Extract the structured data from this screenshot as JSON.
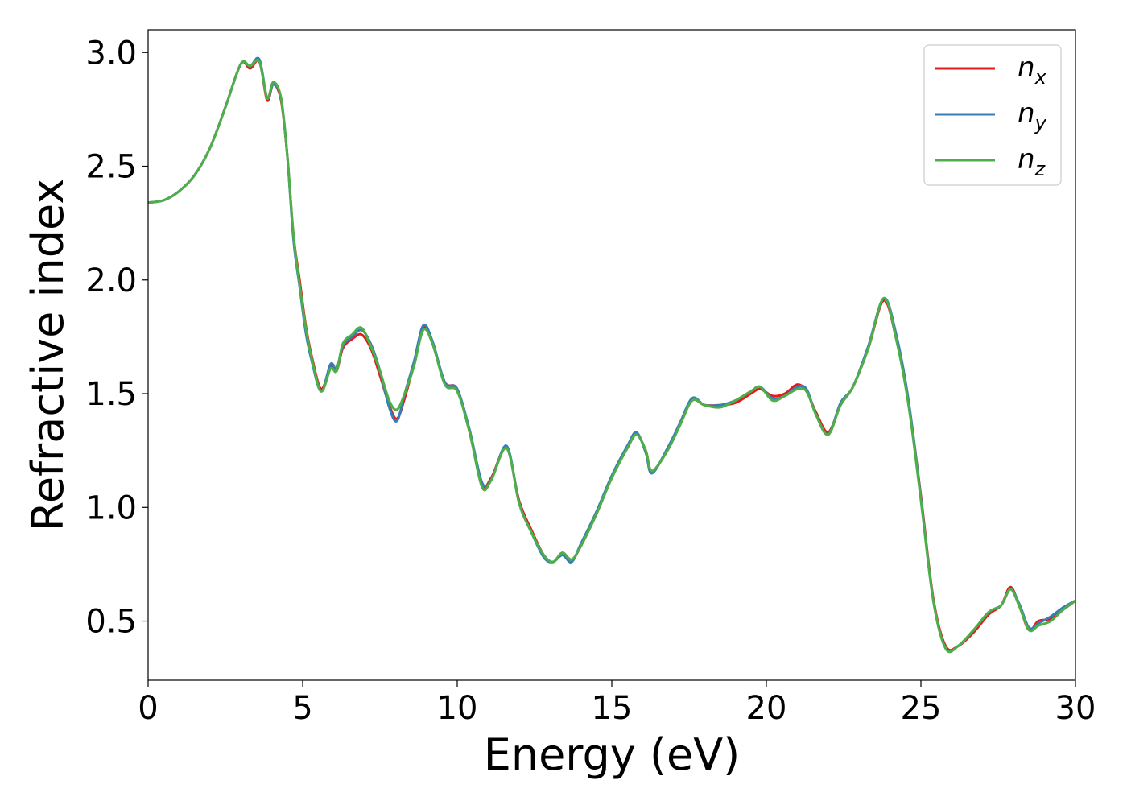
{
  "chart_data": {
    "type": "line",
    "title": "",
    "xlabel": "Energy (eV)",
    "ylabel": "Refractive index",
    "xlim": [
      0,
      30
    ],
    "ylim": [
      0.24,
      3.1
    ],
    "xticks": [
      0,
      5,
      10,
      15,
      20,
      25,
      30
    ],
    "yticks": [
      0.5,
      1.0,
      1.5,
      2.0,
      2.5,
      3.0
    ],
    "xtick_labels": [
      "0",
      "5",
      "10",
      "15",
      "20",
      "25",
      "30"
    ],
    "ytick_labels": [
      "0.5",
      "1.0",
      "1.5",
      "2.0",
      "2.5",
      "3.0"
    ],
    "grid": false,
    "legend_position": "top-right",
    "series": [
      {
        "name": "n_x",
        "label_base": "n",
        "label_sub": "x",
        "color": "#e41a1c",
        "points": [
          [
            0,
            2.34
          ],
          [
            0.5,
            2.35
          ],
          [
            1,
            2.39
          ],
          [
            1.5,
            2.46
          ],
          [
            2,
            2.58
          ],
          [
            2.5,
            2.76
          ],
          [
            3,
            2.95
          ],
          [
            3.3,
            2.93
          ],
          [
            3.6,
            2.96
          ],
          [
            3.85,
            2.79
          ],
          [
            4.05,
            2.86
          ],
          [
            4.3,
            2.79
          ],
          [
            4.5,
            2.55
          ],
          [
            4.7,
            2.2
          ],
          [
            4.9,
            2.0
          ],
          [
            5.1,
            1.8
          ],
          [
            5.3,
            1.66
          ],
          [
            5.6,
            1.52
          ],
          [
            5.9,
            1.62
          ],
          [
            6.1,
            1.6
          ],
          [
            6.3,
            1.7
          ],
          [
            6.6,
            1.74
          ],
          [
            6.9,
            1.76
          ],
          [
            7.2,
            1.7
          ],
          [
            7.5,
            1.58
          ],
          [
            7.8,
            1.45
          ],
          [
            8.05,
            1.39
          ],
          [
            8.3,
            1.48
          ],
          [
            8.6,
            1.63
          ],
          [
            8.9,
            1.79
          ],
          [
            9.2,
            1.72
          ],
          [
            9.6,
            1.55
          ],
          [
            10.0,
            1.52
          ],
          [
            10.4,
            1.33
          ],
          [
            10.8,
            1.1
          ],
          [
            11.1,
            1.13
          ],
          [
            11.6,
            1.26
          ],
          [
            12.0,
            1.03
          ],
          [
            12.4,
            0.9
          ],
          [
            12.8,
            0.79
          ],
          [
            13.1,
            0.76
          ],
          [
            13.4,
            0.8
          ],
          [
            13.7,
            0.77
          ],
          [
            14.0,
            0.83
          ],
          [
            14.5,
            0.97
          ],
          [
            15.0,
            1.13
          ],
          [
            15.5,
            1.26
          ],
          [
            15.8,
            1.32
          ],
          [
            16.1,
            1.25
          ],
          [
            16.3,
            1.16
          ],
          [
            16.8,
            1.25
          ],
          [
            17.2,
            1.36
          ],
          [
            17.6,
            1.47
          ],
          [
            18.0,
            1.45
          ],
          [
            18.5,
            1.45
          ],
          [
            19.0,
            1.46
          ],
          [
            19.5,
            1.5
          ],
          [
            19.8,
            1.52
          ],
          [
            20.2,
            1.49
          ],
          [
            20.6,
            1.5
          ],
          [
            21.0,
            1.54
          ],
          [
            21.3,
            1.51
          ],
          [
            21.6,
            1.42
          ],
          [
            22.0,
            1.33
          ],
          [
            22.4,
            1.45
          ],
          [
            22.8,
            1.53
          ],
          [
            23.3,
            1.7
          ],
          [
            23.8,
            1.91
          ],
          [
            24.2,
            1.74
          ],
          [
            24.6,
            1.46
          ],
          [
            25.0,
            1.05
          ],
          [
            25.4,
            0.6
          ],
          [
            25.8,
            0.39
          ],
          [
            26.2,
            0.39
          ],
          [
            26.7,
            0.45
          ],
          [
            27.2,
            0.53
          ],
          [
            27.6,
            0.57
          ],
          [
            27.9,
            0.65
          ],
          [
            28.2,
            0.56
          ],
          [
            28.5,
            0.46
          ],
          [
            28.8,
            0.5
          ],
          [
            29.2,
            0.51
          ],
          [
            29.6,
            0.55
          ],
          [
            30,
            0.59
          ]
        ]
      },
      {
        "name": "n_y",
        "label_base": "n",
        "label_sub": "y",
        "color": "#377eb8",
        "points": [
          [
            0,
            2.34
          ],
          [
            0.5,
            2.35
          ],
          [
            1,
            2.39
          ],
          [
            1.5,
            2.46
          ],
          [
            2,
            2.58
          ],
          [
            2.5,
            2.76
          ],
          [
            3,
            2.95
          ],
          [
            3.3,
            2.94
          ],
          [
            3.6,
            2.97
          ],
          [
            3.85,
            2.8
          ],
          [
            4.05,
            2.86
          ],
          [
            4.3,
            2.8
          ],
          [
            4.5,
            2.55
          ],
          [
            4.7,
            2.18
          ],
          [
            4.9,
            1.97
          ],
          [
            5.1,
            1.77
          ],
          [
            5.3,
            1.64
          ],
          [
            5.6,
            1.51
          ],
          [
            5.9,
            1.63
          ],
          [
            6.1,
            1.61
          ],
          [
            6.3,
            1.71
          ],
          [
            6.6,
            1.75
          ],
          [
            6.9,
            1.78
          ],
          [
            7.2,
            1.72
          ],
          [
            7.5,
            1.6
          ],
          [
            7.8,
            1.44
          ],
          [
            8.05,
            1.38
          ],
          [
            8.3,
            1.5
          ],
          [
            8.6,
            1.64
          ],
          [
            8.9,
            1.8
          ],
          [
            9.2,
            1.73
          ],
          [
            9.6,
            1.55
          ],
          [
            10.0,
            1.52
          ],
          [
            10.4,
            1.34
          ],
          [
            10.8,
            1.11
          ],
          [
            11.1,
            1.12
          ],
          [
            11.6,
            1.27
          ],
          [
            12.0,
            1.02
          ],
          [
            12.4,
            0.89
          ],
          [
            12.8,
            0.78
          ],
          [
            13.1,
            0.76
          ],
          [
            13.4,
            0.79
          ],
          [
            13.7,
            0.76
          ],
          [
            14.0,
            0.84
          ],
          [
            14.5,
            0.98
          ],
          [
            15.0,
            1.14
          ],
          [
            15.5,
            1.27
          ],
          [
            15.8,
            1.33
          ],
          [
            16.1,
            1.24
          ],
          [
            16.3,
            1.15
          ],
          [
            16.8,
            1.26
          ],
          [
            17.2,
            1.37
          ],
          [
            17.6,
            1.48
          ],
          [
            18.0,
            1.45
          ],
          [
            18.5,
            1.45
          ],
          [
            19.0,
            1.47
          ],
          [
            19.5,
            1.51
          ],
          [
            19.8,
            1.53
          ],
          [
            20.2,
            1.48
          ],
          [
            20.6,
            1.49
          ],
          [
            21.0,
            1.53
          ],
          [
            21.3,
            1.52
          ],
          [
            21.6,
            1.41
          ],
          [
            22.0,
            1.32
          ],
          [
            22.4,
            1.46
          ],
          [
            22.8,
            1.53
          ],
          [
            23.3,
            1.71
          ],
          [
            23.8,
            1.92
          ],
          [
            24.2,
            1.76
          ],
          [
            24.6,
            1.47
          ],
          [
            25.0,
            1.04
          ],
          [
            25.4,
            0.59
          ],
          [
            25.8,
            0.38
          ],
          [
            26.2,
            0.39
          ],
          [
            26.7,
            0.46
          ],
          [
            27.2,
            0.54
          ],
          [
            27.6,
            0.57
          ],
          [
            27.9,
            0.64
          ],
          [
            28.2,
            0.57
          ],
          [
            28.5,
            0.47
          ],
          [
            28.8,
            0.49
          ],
          [
            29.2,
            0.52
          ],
          [
            29.6,
            0.56
          ],
          [
            30,
            0.59
          ]
        ]
      },
      {
        "name": "n_z",
        "label_base": "n",
        "label_sub": "z",
        "color": "#4daf4a",
        "points": [
          [
            0,
            2.34
          ],
          [
            0.5,
            2.35
          ],
          [
            1,
            2.39
          ],
          [
            1.5,
            2.46
          ],
          [
            2,
            2.58
          ],
          [
            2.5,
            2.76
          ],
          [
            3,
            2.95
          ],
          [
            3.3,
            2.94
          ],
          [
            3.6,
            2.96
          ],
          [
            3.85,
            2.8
          ],
          [
            4.05,
            2.87
          ],
          [
            4.3,
            2.8
          ],
          [
            4.5,
            2.55
          ],
          [
            4.7,
            2.2
          ],
          [
            4.9,
            1.98
          ],
          [
            5.1,
            1.79
          ],
          [
            5.3,
            1.65
          ],
          [
            5.6,
            1.51
          ],
          [
            5.9,
            1.61
          ],
          [
            6.1,
            1.6
          ],
          [
            6.3,
            1.72
          ],
          [
            6.6,
            1.76
          ],
          [
            6.9,
            1.79
          ],
          [
            7.2,
            1.71
          ],
          [
            7.5,
            1.6
          ],
          [
            7.8,
            1.47
          ],
          [
            8.05,
            1.43
          ],
          [
            8.3,
            1.5
          ],
          [
            8.6,
            1.62
          ],
          [
            8.9,
            1.78
          ],
          [
            9.2,
            1.72
          ],
          [
            9.6,
            1.54
          ],
          [
            10.0,
            1.51
          ],
          [
            10.4,
            1.33
          ],
          [
            10.8,
            1.09
          ],
          [
            11.1,
            1.12
          ],
          [
            11.6,
            1.26
          ],
          [
            12.0,
            1.02
          ],
          [
            12.4,
            0.89
          ],
          [
            12.8,
            0.79
          ],
          [
            13.1,
            0.76
          ],
          [
            13.4,
            0.8
          ],
          [
            13.7,
            0.77
          ],
          [
            14.0,
            0.83
          ],
          [
            14.5,
            0.97
          ],
          [
            15.0,
            1.13
          ],
          [
            15.5,
            1.26
          ],
          [
            15.8,
            1.32
          ],
          [
            16.1,
            1.25
          ],
          [
            16.3,
            1.16
          ],
          [
            16.8,
            1.25
          ],
          [
            17.2,
            1.36
          ],
          [
            17.6,
            1.47
          ],
          [
            18.0,
            1.45
          ],
          [
            18.5,
            1.44
          ],
          [
            19.0,
            1.47
          ],
          [
            19.5,
            1.51
          ],
          [
            19.8,
            1.53
          ],
          [
            20.2,
            1.47
          ],
          [
            20.6,
            1.49
          ],
          [
            21.0,
            1.52
          ],
          [
            21.3,
            1.51
          ],
          [
            21.6,
            1.41
          ],
          [
            22.0,
            1.32
          ],
          [
            22.4,
            1.45
          ],
          [
            22.8,
            1.53
          ],
          [
            23.3,
            1.7
          ],
          [
            23.8,
            1.92
          ],
          [
            24.2,
            1.74
          ],
          [
            24.6,
            1.45
          ],
          [
            25.0,
            1.03
          ],
          [
            25.4,
            0.59
          ],
          [
            25.8,
            0.38
          ],
          [
            26.2,
            0.39
          ],
          [
            26.7,
            0.46
          ],
          [
            27.2,
            0.54
          ],
          [
            27.6,
            0.57
          ],
          [
            27.9,
            0.64
          ],
          [
            28.2,
            0.56
          ],
          [
            28.5,
            0.46
          ],
          [
            28.8,
            0.48
          ],
          [
            29.2,
            0.5
          ],
          [
            29.6,
            0.55
          ],
          [
            30,
            0.59
          ]
        ]
      }
    ]
  }
}
